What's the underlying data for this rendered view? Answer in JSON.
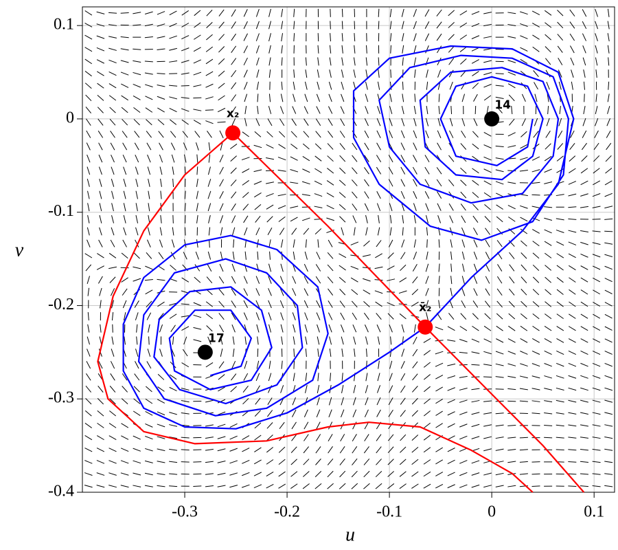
{
  "chart_data": {
    "type": "phase",
    "xlabel": "u",
    "ylabel": "v",
    "xlim": [
      -0.4,
      0.12
    ],
    "ylim": [
      -0.4,
      0.12
    ],
    "xticks": [
      -0.3,
      -0.2,
      -0.1,
      0,
      0.1
    ],
    "yticks": [
      -0.4,
      -0.3,
      -0.2,
      -0.1,
      0,
      0.1
    ],
    "grid": true,
    "trajectories": [
      {
        "color": "#0000ff",
        "x": [
          -0.065,
          -0.02,
          0.03,
          0.065,
          0.08,
          0.065,
          0.02,
          -0.04,
          -0.1,
          -0.135,
          -0.135,
          -0.11,
          -0.06,
          -0.01,
          0.04,
          0.07,
          0.075,
          0.06,
          0.02,
          -0.03,
          -0.08,
          -0.11,
          -0.1,
          -0.07,
          -0.02,
          0.03,
          0.06,
          0.065,
          0.05,
          0.01,
          -0.04,
          -0.07,
          -0.065,
          -0.035,
          0.01,
          0.04,
          0.05,
          0.035,
          0,
          -0.035,
          -0.05,
          -0.035,
          0.005,
          0.035,
          0.04
        ],
        "y": [
          -0.223,
          -0.17,
          -0.12,
          -0.07,
          0.0,
          0.05,
          0.075,
          0.078,
          0.065,
          0.03,
          -0.02,
          -0.07,
          -0.115,
          -0.13,
          -0.11,
          -0.06,
          0.0,
          0.045,
          0.065,
          0.068,
          0.055,
          0.02,
          -0.03,
          -0.07,
          -0.09,
          -0.08,
          -0.04,
          0.0,
          0.04,
          0.055,
          0.05,
          0.02,
          -0.03,
          -0.06,
          -0.065,
          -0.04,
          0.0,
          0.035,
          0.045,
          0.035,
          0.0,
          -0.04,
          -0.05,
          -0.03,
          0.0
        ]
      },
      {
        "color": "#0000ff",
        "x": [
          -0.065,
          -0.1,
          -0.15,
          -0.2,
          -0.25,
          -0.3,
          -0.34,
          -0.36,
          -0.36,
          -0.34,
          -0.3,
          -0.255,
          -0.21,
          -0.17,
          -0.16,
          -0.175,
          -0.22,
          -0.27,
          -0.32,
          -0.345,
          -0.34,
          -0.31,
          -0.26,
          -0.22,
          -0.19,
          -0.185,
          -0.21,
          -0.26,
          -0.305,
          -0.33,
          -0.325,
          -0.295,
          -0.255,
          -0.225,
          -0.215,
          -0.235,
          -0.275,
          -0.31,
          -0.315,
          -0.29,
          -0.255,
          -0.235,
          -0.245,
          -0.275
        ],
        "y": [
          -0.223,
          -0.25,
          -0.285,
          -0.315,
          -0.332,
          -0.33,
          -0.31,
          -0.27,
          -0.22,
          -0.17,
          -0.135,
          -0.125,
          -0.14,
          -0.18,
          -0.23,
          -0.28,
          -0.31,
          -0.318,
          -0.3,
          -0.26,
          -0.21,
          -0.165,
          -0.15,
          -0.165,
          -0.2,
          -0.245,
          -0.285,
          -0.305,
          -0.29,
          -0.255,
          -0.215,
          -0.185,
          -0.18,
          -0.205,
          -0.245,
          -0.28,
          -0.29,
          -0.27,
          -0.235,
          -0.205,
          -0.205,
          -0.235,
          -0.265,
          -0.275
        ]
      },
      {
        "color": "#ff0000",
        "x": [
          -0.253,
          -0.16,
          -0.065,
          0.0,
          0.05,
          0.09
        ],
        "y": [
          -0.015,
          -0.115,
          -0.223,
          -0.295,
          -0.35,
          -0.4
        ]
      },
      {
        "color": "#ff0000",
        "x": [
          -0.253,
          -0.3,
          -0.34,
          -0.37,
          -0.385,
          -0.375,
          -0.34,
          -0.29,
          -0.22,
          -0.16,
          -0.12,
          -0.07,
          -0.02,
          0.02,
          0.04
        ],
        "y": [
          -0.015,
          -0.06,
          -0.12,
          -0.19,
          -0.26,
          -0.3,
          -0.335,
          -0.348,
          -0.345,
          -0.33,
          -0.325,
          -0.33,
          -0.355,
          -0.38,
          -0.4
        ]
      }
    ],
    "fixed_points": {
      "x": [
        -0.253,
        -0.065,
        0,
        -0.28
      ],
      "y": [
        -0.015,
        -0.223,
        0,
        -0.25
      ],
      "labels": [
        "x₂",
        "x̄₂",
        "14",
        "17"
      ],
      "colors": [
        "#ff0000",
        "#ff0000",
        "#000000",
        "#000000"
      ]
    }
  }
}
